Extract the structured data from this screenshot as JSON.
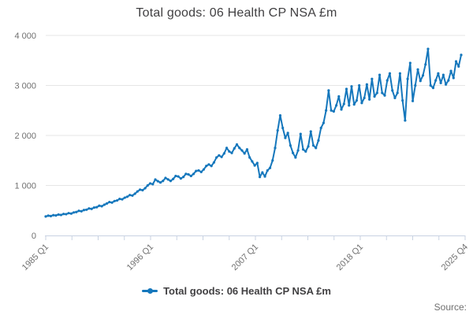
{
  "header": {
    "title": "Total goods: 06 Health CP NSA £m"
  },
  "legend": {
    "label": "Total goods: 06 Health CP NSA £m"
  },
  "source": {
    "label": "Source:"
  },
  "colors": {
    "line": "#1577bc",
    "grid": "#e6e6e6",
    "axis": "#c8d2e2",
    "tick_text": "#707070",
    "title_text": "#414042"
  },
  "chart_data": {
    "type": "line",
    "title": "Total goods: 06 Health CP NSA £m",
    "xlabel": "",
    "ylabel": "",
    "ylim": [
      0,
      4000
    ],
    "grid": "horizontal",
    "legend_position": "bottom",
    "x_start": "1985 Q1",
    "x_end": "2025 Q4",
    "frequency": "quarterly",
    "x_ticks": [
      {
        "label": "1985 Q1",
        "pos": 0
      },
      {
        "label": "1996 Q1",
        "pos": 0.25
      },
      {
        "label": "2007 Q1",
        "pos": 0.5
      },
      {
        "label": "2018 Q1",
        "pos": 0.75
      },
      {
        "label": "2025 Q4",
        "pos": 1
      }
    ],
    "minor_tick_count": 17,
    "y_ticks": [
      {
        "label": "0",
        "value": 0
      },
      {
        "label": "1 000",
        "value": 1000
      },
      {
        "label": "2 000",
        "value": 2000
      },
      {
        "label": "3 000",
        "value": 3000
      },
      {
        "label": "4 000",
        "value": 4000
      }
    ],
    "series": [
      {
        "name": "Total goods: 06 Health CP NSA £m",
        "color": "#1577bc",
        "values": [
          380,
          396,
          388,
          406,
          400,
          418,
          410,
          430,
          426,
          446,
          438,
          460,
          468,
          492,
          484,
          508,
          515,
          540,
          532,
          558,
          565,
          595,
          585,
          615,
          640,
          668,
          658,
          688,
          700,
          730,
          722,
          755,
          775,
          808,
          798,
          835,
          880,
          915,
          905,
          945,
          1000,
          1040,
          1025,
          1118,
          1085,
          1060,
          1090,
          1150,
          1120,
          1090,
          1130,
          1190,
          1180,
          1140,
          1170,
          1230,
          1220,
          1190,
          1230,
          1290,
          1300,
          1270,
          1320,
          1390,
          1420,
          1390,
          1460,
          1560,
          1600,
          1570,
          1640,
          1750,
          1680,
          1650,
          1740,
          1820,
          1750,
          1700,
          1640,
          1720,
          1560,
          1480,
          1400,
          1450,
          1170,
          1260,
          1180,
          1300,
          1350,
          1500,
          1750,
          2100,
          2400,
          2150,
          1950,
          2050,
          1800,
          1650,
          1560,
          1700,
          2030,
          1720,
          1680,
          1780,
          2080,
          1800,
          1750,
          1900,
          2150,
          2250,
          2500,
          2900,
          2500,
          2480,
          2600,
          2780,
          2520,
          2630,
          2930,
          2600,
          2980,
          2620,
          2700,
          3000,
          2650,
          2750,
          3020,
          2720,
          3130,
          2780,
          2850,
          3210,
          2850,
          2800,
          3100,
          3240,
          2900,
          2750,
          2850,
          3240,
          2700,
          2300,
          3130,
          3450,
          2690,
          3000,
          3320,
          3090,
          3200,
          3420,
          3730,
          3000,
          2950,
          3100,
          3240,
          3050,
          3210,
          3020,
          3100,
          3290,
          3150,
          3480,
          3380,
          3610
        ]
      }
    ]
  }
}
